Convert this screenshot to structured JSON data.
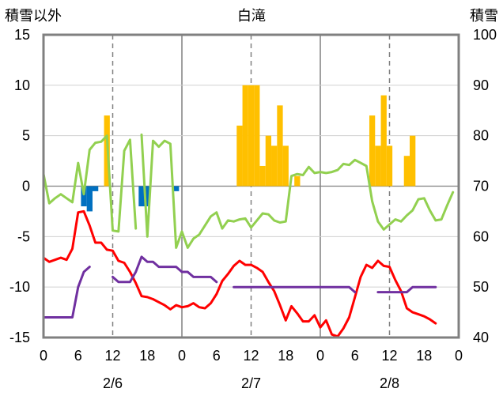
{
  "chart_data": {
    "type": "bar+line",
    "title": "白滝",
    "left_axis_label": "積雪以外",
    "right_axis_label": "積雪",
    "left_ylim": [
      -15,
      15
    ],
    "left_ticks": [
      15,
      10,
      5,
      0,
      -5,
      -10,
      -15
    ],
    "right_ylim": [
      40,
      100
    ],
    "right_ticks": [
      100,
      90,
      80,
      70,
      60,
      50,
      40
    ],
    "x_tick_labels": [
      "0",
      "6",
      "12",
      "18",
      "0",
      "6",
      "12",
      "18",
      "0",
      "6",
      "12",
      "18",
      "0"
    ],
    "date_labels": [
      "2/6",
      "2/7",
      "2/8"
    ],
    "grid": "dashed vertical lines at 12:00 of each day; solid lines at day boundaries",
    "bar_series": {
      "name": "",
      "color": "#FFC000",
      "points": [
        [
          11,
          7
        ],
        [
          34,
          6
        ],
        [
          35,
          10
        ],
        [
          36,
          10
        ],
        [
          37,
          10
        ],
        [
          38,
          2
        ],
        [
          39,
          5
        ],
        [
          40,
          4
        ],
        [
          41,
          8
        ],
        [
          42,
          4
        ],
        [
          44,
          1
        ],
        [
          57,
          7
        ],
        [
          58,
          4
        ],
        [
          59,
          9
        ],
        [
          60,
          4
        ],
        [
          63,
          3
        ],
        [
          64,
          5
        ]
      ]
    },
    "neg_bar_series": {
      "name": "",
      "color": "#0070C0",
      "points": [
        [
          7,
          -2
        ],
        [
          8,
          -2.5
        ],
        [
          9,
          -0.5
        ],
        [
          17,
          -2
        ],
        [
          18,
          -2
        ],
        [
          23,
          -0.5
        ]
      ]
    },
    "green_series": {
      "name": "",
      "color": "#92D050",
      "points": [
        [
          0,
          1.2
        ],
        [
          1,
          -1.7
        ],
        [
          2,
          -1.2
        ],
        [
          3,
          -0.8
        ],
        [
          4,
          -1.2
        ],
        [
          5,
          -1.6
        ],
        [
          6,
          2.3
        ],
        [
          7,
          -0.8
        ],
        [
          8,
          3.6
        ],
        [
          9,
          4.3
        ],
        [
          10,
          4.4
        ],
        [
          11,
          5.0
        ],
        [
          12,
          -4.4
        ],
        [
          13,
          -4.5
        ],
        [
          14,
          3.5
        ],
        [
          15,
          4.6
        ],
        [
          16,
          -4.2
        ],
        [
          null,
          null
        ],
        [
          17,
          5.1
        ],
        [
          18,
          -5.0
        ],
        [
          19,
          4.5
        ],
        [
          20,
          3.9
        ],
        [
          21,
          4.5
        ],
        [
          22,
          4.2
        ],
        [
          23,
          -6.1
        ],
        [
          24,
          -4.5
        ],
        [
          25,
          -6.1
        ],
        [
          26,
          -5.2
        ],
        [
          27,
          -4.8
        ],
        [
          28,
          -3.9
        ],
        [
          29,
          -3.0
        ],
        [
          30,
          -2.6
        ],
        [
          31,
          -4.2
        ],
        [
          32,
          -3.4
        ],
        [
          33,
          -3.5
        ],
        [
          34,
          -3.3
        ],
        [
          35,
          -3.2
        ],
        [
          36,
          -4.1
        ],
        [
          37,
          -3.4
        ],
        [
          38,
          -2.7
        ],
        [
          39,
          -2.8
        ],
        [
          40,
          -3.4
        ],
        [
          41,
          -3.6
        ],
        [
          42,
          -3.5
        ],
        [
          43,
          1.0
        ],
        [
          44,
          1.2
        ],
        [
          45,
          1.1
        ],
        [
          46,
          1.9
        ],
        [
          47,
          1.3
        ],
        [
          48,
          1.4
        ],
        [
          49,
          1.3
        ],
        [
          50,
          1.4
        ],
        [
          51,
          1.6
        ],
        [
          52,
          2.2
        ],
        [
          53,
          2.1
        ],
        [
          54,
          2.6
        ],
        [
          55,
          2.3
        ],
        [
          56,
          2.0
        ],
        [
          57,
          -1.5
        ],
        [
          58,
          -3.5
        ],
        [
          59,
          -4.3
        ],
        [
          60,
          -3.8
        ],
        [
          61,
          -3.3
        ],
        [
          62,
          -3.5
        ],
        [
          63,
          -2.9
        ],
        [
          64,
          -2.4
        ],
        [
          65,
          -1.3
        ],
        [
          66,
          -1.2
        ],
        [
          67,
          -2.4
        ],
        [
          68,
          -3.4
        ],
        [
          69,
          -3.3
        ],
        [
          70,
          -1.9
        ],
        [
          71,
          -0.6
        ]
      ]
    },
    "red_series": {
      "name": "",
      "color": "#FF0000",
      "points": [
        [
          0,
          -7.1
        ],
        [
          1,
          -7.5
        ],
        [
          2,
          -7.3
        ],
        [
          3,
          -7.1
        ],
        [
          4,
          -7.3
        ],
        [
          5,
          -6.2
        ],
        [
          6,
          -2.6
        ],
        [
          7,
          -2.5
        ],
        [
          8,
          -3.9
        ],
        [
          9,
          -5.6
        ],
        [
          10,
          -5.6
        ],
        [
          11,
          -6.3
        ],
        [
          12,
          -6.4
        ],
        [
          13,
          -7.4
        ],
        [
          14,
          -7.6
        ],
        [
          15,
          -8.5
        ],
        [
          16,
          -9.6
        ],
        [
          17,
          -10.9
        ],
        [
          18,
          -11.0
        ],
        [
          19,
          -11.2
        ],
        [
          20,
          -11.5
        ],
        [
          21,
          -11.8
        ],
        [
          22,
          -12.2
        ],
        [
          23,
          -11.8
        ],
        [
          24,
          -12.0
        ],
        [
          25,
          -11.9
        ],
        [
          26,
          -11.6
        ],
        [
          27,
          -12.0
        ],
        [
          28,
          -12.1
        ],
        [
          29,
          -11.6
        ],
        [
          30,
          -10.7
        ],
        [
          31,
          -9.4
        ],
        [
          32,
          -8.7
        ],
        [
          33,
          -7.9
        ],
        [
          34,
          -7.4
        ],
        [
          35,
          -7.8
        ],
        [
          36,
          -7.8
        ],
        [
          37,
          -8.1
        ],
        [
          38,
          -8.5
        ],
        [
          39,
          -9.5
        ],
        [
          40,
          -10.4
        ],
        [
          41,
          -11.8
        ],
        [
          42,
          -13.3
        ],
        [
          43,
          -11.9
        ],
        [
          44,
          -12.6
        ],
        [
          45,
          -13.4
        ],
        [
          46,
          -13.4
        ],
        [
          47,
          -12.8
        ],
        [
          48,
          -14.0
        ],
        [
          49,
          -13.3
        ],
        [
          50,
          -14.7
        ],
        [
          51,
          -14.9
        ],
        [
          52,
          -14.1
        ],
        [
          53,
          -13.0
        ],
        [
          54,
          -11.0
        ],
        [
          55,
          -9.0
        ],
        [
          56,
          -7.8
        ],
        [
          57,
          -8.1
        ],
        [
          58,
          -7.4
        ],
        [
          59,
          -7.9
        ],
        [
          60,
          -8.0
        ],
        [
          61,
          -9.3
        ],
        [
          62,
          -10.4
        ],
        [
          63,
          -12.1
        ],
        [
          64,
          -12.5
        ],
        [
          65,
          -12.7
        ],
        [
          66,
          -12.9
        ],
        [
          67,
          -13.2
        ],
        [
          68,
          -13.6
        ]
      ]
    },
    "purple_series": {
      "name": "",
      "color": "#7030A0",
      "axis": "right",
      "points": [
        [
          0,
          44
        ],
        [
          1,
          44
        ],
        [
          2,
          44
        ],
        [
          3,
          44
        ],
        [
          4,
          44
        ],
        [
          5,
          44
        ],
        [
          6,
          50
        ],
        [
          7,
          53
        ],
        [
          8,
          54
        ],
        [
          null,
          null
        ],
        [
          12,
          52
        ],
        [
          13,
          51
        ],
        [
          14,
          51
        ],
        [
          15,
          51
        ],
        [
          16,
          53
        ],
        [
          17,
          56
        ],
        [
          18,
          55
        ],
        [
          19,
          55
        ],
        [
          20,
          54
        ],
        [
          21,
          54
        ],
        [
          22,
          54
        ],
        [
          23,
          54
        ],
        [
          24,
          53
        ],
        [
          25,
          53
        ],
        [
          26,
          52
        ],
        [
          27,
          52
        ],
        [
          28,
          52
        ],
        [
          29,
          52
        ],
        [
          30,
          51
        ],
        [
          null,
          null
        ],
        [
          33,
          50
        ],
        [
          34,
          50
        ],
        [
          35,
          50
        ],
        [
          36,
          50
        ],
        [
          37,
          50
        ],
        [
          38,
          50
        ],
        [
          39,
          50
        ],
        [
          40,
          50
        ],
        [
          41,
          50
        ],
        [
          42,
          50
        ],
        [
          43,
          50
        ],
        [
          44,
          50
        ],
        [
          45,
          50
        ],
        [
          46,
          50
        ],
        [
          47,
          50
        ],
        [
          48,
          50
        ],
        [
          49,
          50
        ],
        [
          50,
          50
        ],
        [
          51,
          50
        ],
        [
          52,
          50
        ],
        [
          53,
          50
        ],
        [
          54,
          49
        ],
        [
          null,
          null
        ],
        [
          58,
          49
        ],
        [
          59,
          49
        ],
        [
          60,
          49
        ],
        [
          61,
          49
        ],
        [
          62,
          49
        ],
        [
          63,
          49
        ],
        [
          64,
          50
        ],
        [
          65,
          50
        ],
        [
          66,
          50
        ],
        [
          67,
          50
        ],
        [
          68,
          50
        ]
      ]
    }
  }
}
